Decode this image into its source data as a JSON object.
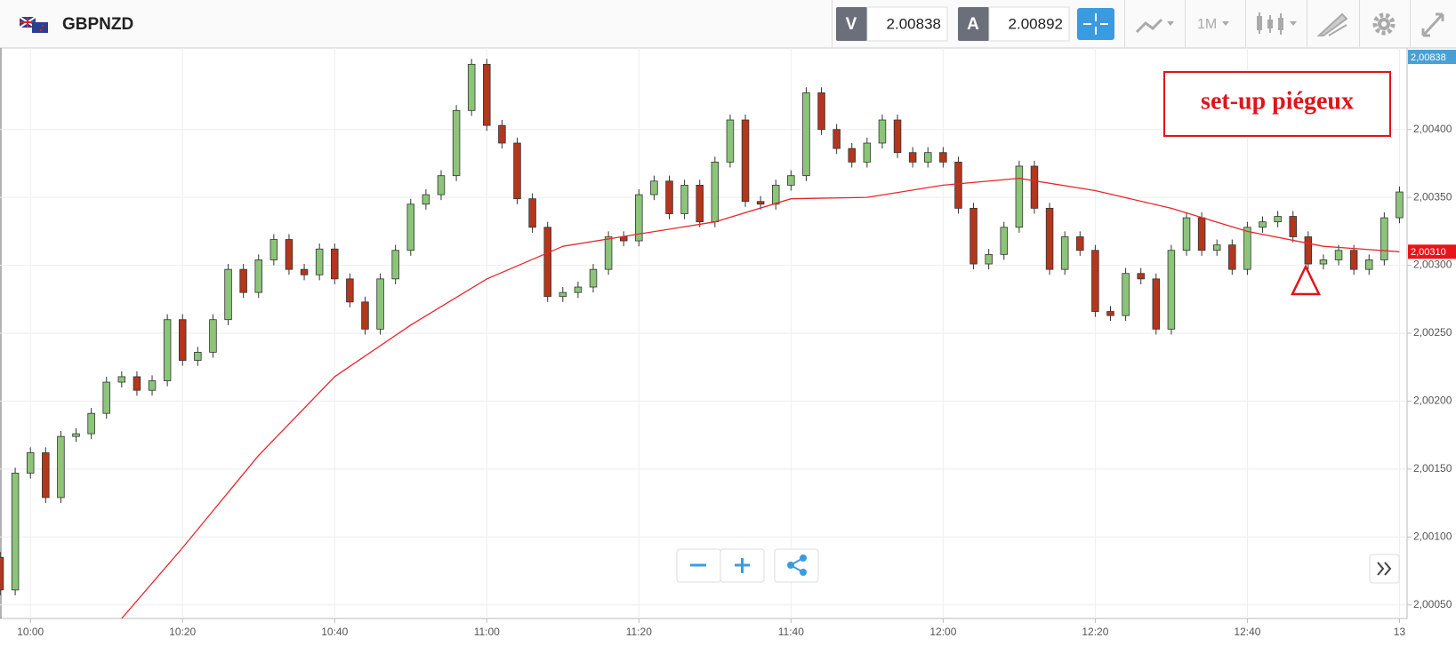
{
  "header": {
    "symbol": "GBPNZD",
    "sell_label": "V",
    "sell_price": 2.00838,
    "buy_label": "A",
    "buy_price": 2.00892,
    "timeframe": "1M"
  },
  "chart_data": {
    "type": "candlestick",
    "annotation": "set-up piégeux",
    "up_color": "#8cc47a",
    "down_color": "#b3361d",
    "grid": true,
    "x": [
      "9:56",
      "9:58",
      "10:00",
      "10:02",
      "10:04",
      "10:06",
      "10:08",
      "10:10",
      "10:12",
      "10:14",
      "10:16",
      "10:18",
      "10:20",
      "10:22",
      "10:24",
      "10:26",
      "10:28",
      "10:30",
      "10:32",
      "10:34",
      "10:36",
      "10:38",
      "10:40",
      "10:42",
      "10:44",
      "10:46",
      "10:48",
      "10:50",
      "10:52",
      "10:54",
      "10:56",
      "10:58",
      "11:00",
      "11:02",
      "11:04",
      "11:06",
      "11:08",
      "11:10",
      "11:12",
      "11:14",
      "11:16",
      "11:18",
      "11:20",
      "11:22",
      "11:24",
      "11:26",
      "11:28",
      "11:30",
      "11:32",
      "11:34",
      "11:36",
      "11:38",
      "11:40",
      "11:42",
      "11:44",
      "11:46",
      "11:48",
      "11:50",
      "11:52",
      "11:54",
      "11:56",
      "11:58",
      "12:00",
      "12:02",
      "12:04",
      "12:06",
      "12:08",
      "12:10",
      "12:12",
      "12:14",
      "12:16",
      "12:18",
      "12:20",
      "12:22",
      "12:24",
      "12:26",
      "12:28",
      "12:30",
      "12:32",
      "12:34",
      "12:36",
      "12:38",
      "12:40",
      "12:42",
      "12:44",
      "12:46",
      "12:48",
      "12:50",
      "12:52",
      "12:54",
      "12:56",
      "12:58",
      "13:00"
    ],
    "open": [
      2.00085,
      2.00061,
      2.00147,
      2.00162,
      2.00129,
      2.00174,
      2.00176,
      2.00191,
      2.00214,
      2.00218,
      2.00208,
      2.00215,
      2.0026,
      2.0023,
      2.00236,
      2.0026,
      2.00297,
      2.0028,
      2.00304,
      2.00319,
      2.00297,
      2.00293,
      2.00312,
      2.0029,
      2.00273,
      2.00253,
      2.0029,
      2.00311,
      2.00345,
      2.00352,
      2.00366,
      2.00414,
      2.00448,
      2.00403,
      2.0039,
      2.00349,
      2.00328,
      2.00277,
      2.0028,
      2.00284,
      2.00297,
      2.00321,
      2.00318,
      2.00352,
      2.00362,
      2.00338,
      2.00359,
      2.00332,
      2.00376,
      2.00407,
      2.00347,
      2.00345,
      2.00359,
      2.00366,
      2.00427,
      2.004,
      2.00386,
      2.00376,
      2.0039,
      2.00407,
      2.00383,
      2.00376,
      2.00383,
      2.00376,
      2.00342,
      2.00301,
      2.00308,
      2.00328,
      2.00373,
      2.00342,
      2.00297,
      2.00321,
      2.00311,
      2.00266,
      2.00263,
      2.00294,
      2.0029,
      2.00253,
      2.00311,
      2.00335,
      2.00311,
      2.00315,
      2.00297,
      2.00328,
      2.00332,
      2.00336,
      2.00321,
      2.00301,
      2.00304,
      2.00311,
      2.00297,
      2.00304,
      2.00335
    ],
    "high": [
      2.00089,
      2.00151,
      2.00166,
      2.00166,
      2.00178,
      2.0018,
      2.00195,
      2.00218,
      2.00222,
      2.00222,
      2.00219,
      2.00264,
      2.00264,
      2.0024,
      2.00264,
      2.00301,
      2.00301,
      2.00308,
      2.00323,
      2.00323,
      2.00301,
      2.00316,
      2.00316,
      2.00294,
      2.00277,
      2.00294,
      2.00315,
      2.00349,
      2.00356,
      2.0037,
      2.00418,
      2.00452,
      2.00452,
      2.00407,
      2.00394,
      2.00353,
      2.00332,
      2.00284,
      2.00288,
      2.00301,
      2.00325,
      2.00325,
      2.00356,
      2.00366,
      2.00366,
      2.00363,
      2.00363,
      2.0038,
      2.00411,
      2.00411,
      2.00351,
      2.00363,
      2.0037,
      2.00431,
      2.00431,
      2.00404,
      2.0039,
      2.00394,
      2.00411,
      2.00411,
      2.00387,
      2.00387,
      2.00387,
      2.0038,
      2.00346,
      2.00312,
      2.00332,
      2.00377,
      2.00377,
      2.00346,
      2.00325,
      2.00325,
      2.00315,
      2.0027,
      2.00298,
      2.00298,
      2.00294,
      2.00315,
      2.00339,
      2.00339,
      2.00319,
      2.00319,
      2.00332,
      2.00336,
      2.0034,
      2.0034,
      2.00325,
      2.00308,
      2.00315,
      2.00315,
      2.00308,
      2.00339,
      2.00358
    ],
    "low": [
      2.00057,
      2.00057,
      2.00143,
      2.00125,
      2.00125,
      2.0017,
      2.00172,
      2.00187,
      2.0021,
      2.00204,
      2.00204,
      2.00211,
      2.00226,
      2.00226,
      2.00232,
      2.00256,
      2.00276,
      2.00276,
      2.003,
      2.00293,
      2.00289,
      2.00289,
      2.00286,
      2.00269,
      2.00249,
      2.00249,
      2.00286,
      2.00307,
      2.00341,
      2.00348,
      2.00362,
      2.0041,
      2.00399,
      2.00386,
      2.00345,
      2.00324,
      2.00273,
      2.00273,
      2.00276,
      2.0028,
      2.00293,
      2.00314,
      2.00314,
      2.00348,
      2.00334,
      2.00334,
      2.00328,
      2.00328,
      2.00372,
      2.00343,
      2.00341,
      2.00341,
      2.00355,
      2.00362,
      2.00396,
      2.00382,
      2.00372,
      2.00372,
      2.00386,
      2.00379,
      2.00372,
      2.00372,
      2.00372,
      2.00338,
      2.00297,
      2.00297,
      2.00304,
      2.00324,
      2.00338,
      2.00293,
      2.00293,
      2.00307,
      2.00262,
      2.00259,
      2.00259,
      2.00286,
      2.00249,
      2.00249,
      2.00307,
      2.00307,
      2.00307,
      2.00293,
      2.00293,
      2.00324,
      2.00328,
      2.00317,
      2.00297,
      2.00297,
      2.003,
      2.00293,
      2.00293,
      2.003,
      2.00331
    ],
    "close": [
      2.00061,
      2.00147,
      2.00162,
      2.00129,
      2.00174,
      2.00176,
      2.00191,
      2.00214,
      2.00218,
      2.00208,
      2.00215,
      2.0026,
      2.0023,
      2.00236,
      2.0026,
      2.00297,
      2.0028,
      2.00304,
      2.00319,
      2.00297,
      2.00293,
      2.00312,
      2.0029,
      2.00273,
      2.00253,
      2.0029,
      2.00311,
      2.00345,
      2.00352,
      2.00366,
      2.00414,
      2.00448,
      2.00403,
      2.0039,
      2.00349,
      2.00328,
      2.00277,
      2.0028,
      2.00284,
      2.00297,
      2.00321,
      2.00318,
      2.00352,
      2.00362,
      2.00338,
      2.00359,
      2.00332,
      2.00376,
      2.00407,
      2.00347,
      2.00345,
      2.00359,
      2.00366,
      2.00427,
      2.004,
      2.00386,
      2.00376,
      2.0039,
      2.00407,
      2.00383,
      2.00376,
      2.00383,
      2.00376,
      2.00342,
      2.00301,
      2.00308,
      2.00328,
      2.00373,
      2.00342,
      2.00297,
      2.00321,
      2.00311,
      2.00266,
      2.00263,
      2.00294,
      2.0029,
      2.00253,
      2.00311,
      2.00335,
      2.00311,
      2.00315,
      2.00297,
      2.00328,
      2.00332,
      2.00336,
      2.00321,
      2.00301,
      2.00304,
      2.00311,
      2.00297,
      2.00304,
      2.00335,
      2.00354
    ],
    "moving_average": {
      "color": "#e8262b",
      "x": [
        "10:12",
        "10:20",
        "10:30",
        "10:40",
        "10:50",
        "11:00",
        "11:10",
        "11:20",
        "11:30",
        "11:40",
        "11:50",
        "12:00",
        "12:10",
        "12:20",
        "12:30",
        "12:40",
        "12:50",
        "13:00"
      ],
      "values": [
        2.0004,
        2.00092,
        2.0016,
        2.00218,
        2.00256,
        2.0029,
        2.00314,
        2.00323,
        2.00332,
        2.00349,
        2.0035,
        2.00359,
        2.00364,
        2.00355,
        2.00342,
        2.00325,
        2.00314,
        2.0031
      ]
    },
    "xlim": [
      "9:56",
      "13:01"
    ],
    "xticks": [
      "10:00",
      "10:20",
      "10:40",
      "11:00",
      "11:20",
      "11:40",
      "12:00",
      "12:20",
      "12:40",
      {
        "value": "13:00",
        "label": "13"
      }
    ],
    "ylim": [
      2.0004,
      2.0046
    ],
    "yticks": [
      {
        "value": 2.0005,
        "label": "2,00050"
      },
      {
        "value": 2.001,
        "label": "2,00100"
      },
      {
        "value": 2.0015,
        "label": "2,00150"
      },
      {
        "value": 2.002,
        "label": "2,00200"
      },
      {
        "value": 2.0025,
        "label": "2,00250"
      },
      {
        "value": 2.003,
        "label": "2,00300"
      },
      {
        "value": 2.0035,
        "label": "2,00350"
      },
      {
        "value": 2.004,
        "label": "2,00400"
      }
    ],
    "price_markers": [
      {
        "value": 2.00838,
        "label": "2,00838",
        "color": "#4a9fd4"
      },
      {
        "value": 2.0031,
        "label": "2,00310",
        "color": "#e8141b"
      }
    ]
  }
}
